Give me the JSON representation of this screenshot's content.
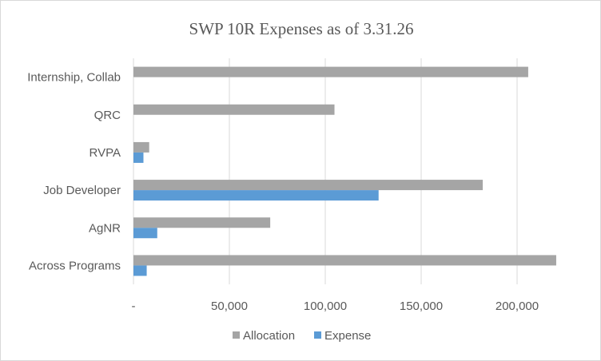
{
  "chart_data": {
    "type": "bar",
    "orientation": "horizontal",
    "title": "SWP 10R Expenses as of 3.31.26",
    "xlabel": "",
    "ylabel": "",
    "categories": [
      "Internship, Collab",
      "QRC",
      "RVPA",
      "Job Developer",
      "AgNR",
      "Across Programs"
    ],
    "series": [
      {
        "name": "Allocation",
        "color": "#a5a5a5",
        "values": [
          205800,
          104800,
          8200,
          182100,
          71300,
          220400
        ]
      },
      {
        "name": "Expense",
        "color": "#5b9bd5",
        "values": [
          0,
          0,
          5200,
          127800,
          12400,
          6900
        ]
      }
    ],
    "xlim": [
      0,
      220400
    ],
    "xticks": [
      0,
      50000,
      100000,
      150000,
      200000
    ],
    "xtick_labels": [
      "-",
      "50,000",
      "100,000",
      "150,000",
      "200,000"
    ],
    "grid": "vertical",
    "legend": "bottom"
  }
}
